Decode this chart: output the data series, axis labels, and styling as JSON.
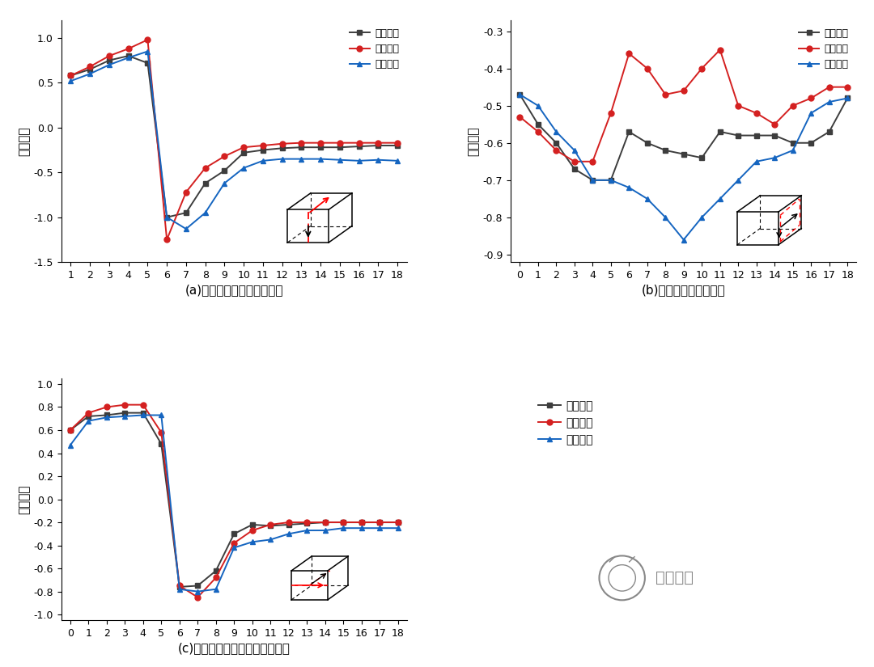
{
  "plot_a": {
    "x": [
      1,
      2,
      3,
      4,
      5,
      6,
      7,
      8,
      9,
      10,
      11,
      12,
      13,
      14,
      15,
      16,
      17,
      18
    ],
    "wind_tunnel": [
      0.58,
      0.65,
      0.75,
      0.8,
      0.72,
      -1.0,
      -0.95,
      -0.62,
      -0.48,
      -0.28,
      -0.25,
      -0.23,
      -0.22,
      -0.22,
      -0.22,
      -0.21,
      -0.2,
      -0.2
    ],
    "numerical": [
      0.58,
      0.68,
      0.8,
      0.88,
      0.98,
      -1.25,
      -0.72,
      -0.45,
      -0.32,
      -0.22,
      -0.2,
      -0.18,
      -0.17,
      -0.17,
      -0.17,
      -0.17,
      -0.17,
      -0.17
    ],
    "field": [
      0.52,
      0.6,
      0.7,
      0.78,
      0.85,
      -1.0,
      -1.13,
      -0.95,
      -0.62,
      -0.45,
      -0.37,
      -0.35,
      -0.35,
      -0.35,
      -0.36,
      -0.37,
      -0.36,
      -0.37
    ],
    "ylim": [
      -1.5,
      1.2
    ],
    "yticks": [
      -1.5,
      -1.0,
      -0.5,
      0.0,
      0.5,
      1.0
    ],
    "xticks": [
      1,
      2,
      3,
      4,
      5,
      6,
      7,
      8,
      9,
      10,
      11,
      12,
      13,
      14,
      15,
      16,
      17,
      18
    ],
    "xlabel": "(a)沿立方体流向中心线点位",
    "ylabel": "风压系数"
  },
  "plot_b": {
    "x": [
      0,
      1,
      2,
      3,
      4,
      5,
      6,
      7,
      8,
      9,
      10,
      11,
      12,
      13,
      14,
      15,
      16,
      17,
      18
    ],
    "wind_tunnel": [
      -0.47,
      -0.55,
      -0.6,
      -0.67,
      -0.7,
      -0.7,
      -0.57,
      -0.6,
      -0.62,
      -0.63,
      -0.64,
      -0.57,
      -0.58,
      -0.58,
      -0.58,
      -0.6,
      -0.6,
      -0.57,
      -0.48
    ],
    "numerical": [
      -0.53,
      -0.57,
      -0.62,
      -0.65,
      -0.65,
      -0.52,
      -0.36,
      -0.4,
      -0.47,
      -0.46,
      -0.4,
      -0.35,
      -0.5,
      -0.52,
      -0.55,
      -0.5,
      -0.48,
      -0.45,
      -0.45
    ],
    "field": [
      -0.47,
      -0.5,
      -0.57,
      -0.62,
      -0.7,
      -0.7,
      -0.72,
      -0.75,
      -0.8,
      -0.86,
      -0.8,
      -0.75,
      -0.7,
      -0.65,
      -0.64,
      -0.62,
      -0.52,
      -0.49,
      -0.48
    ],
    "ylim": [
      -0.92,
      -0.27
    ],
    "yticks": [
      -0.9,
      -0.8,
      -0.7,
      -0.6,
      -0.5,
      -0.4,
      -0.3
    ],
    "xticks": [
      0,
      1,
      2,
      3,
      4,
      5,
      6,
      7,
      8,
      9,
      10,
      11,
      12,
      13,
      14,
      15,
      16,
      17,
      18
    ],
    "xlabel": "(b)沿侧面中心线上点位",
    "ylabel": "风压系数"
  },
  "plot_c": {
    "x": [
      0,
      1,
      2,
      3,
      4,
      5,
      6,
      7,
      8,
      9,
      10,
      11,
      12,
      13,
      14,
      15,
      16,
      17,
      18
    ],
    "wind_tunnel": [
      0.6,
      0.72,
      0.73,
      0.75,
      0.75,
      0.48,
      -0.76,
      -0.75,
      -0.62,
      -0.3,
      -0.22,
      -0.23,
      -0.22,
      -0.21,
      -0.2,
      -0.2,
      -0.2,
      -0.2,
      -0.2
    ],
    "numerical": [
      0.6,
      0.75,
      0.8,
      0.82,
      0.82,
      0.58,
      -0.75,
      -0.85,
      -0.68,
      -0.38,
      -0.27,
      -0.22,
      -0.2,
      -0.2,
      -0.2,
      -0.2,
      -0.2,
      -0.2,
      -0.2
    ],
    "field": [
      0.47,
      0.68,
      0.71,
      0.72,
      0.73,
      0.73,
      -0.78,
      -0.8,
      -0.78,
      -0.42,
      -0.37,
      -0.35,
      -0.3,
      -0.27,
      -0.27,
      -0.25,
      -0.25,
      -0.25,
      -0.25
    ],
    "ylim": [
      -1.05,
      1.05
    ],
    "yticks": [
      -1.0,
      -0.8,
      -0.6,
      -0.4,
      -0.2,
      0.0,
      0.2,
      0.4,
      0.6,
      0.8,
      1.0
    ],
    "xticks": [
      0,
      1,
      2,
      3,
      4,
      5,
      6,
      7,
      8,
      9,
      10,
      11,
      12,
      13,
      14,
      15,
      16,
      17,
      18
    ],
    "xlabel": "(c)沿立方体横向中心线截面点位",
    "ylabel": "风压系数"
  },
  "legend_labels": [
    "风洞试验",
    "数值模拟",
    "现场实测"
  ],
  "wind_tunnel_color": "#3d3d3d",
  "numerical_color": "#d42020",
  "field_color": "#1565c0",
  "wind_tunnel_marker": "s",
  "numerical_marker": "o",
  "field_marker": "^",
  "logo_text": "华南地震"
}
